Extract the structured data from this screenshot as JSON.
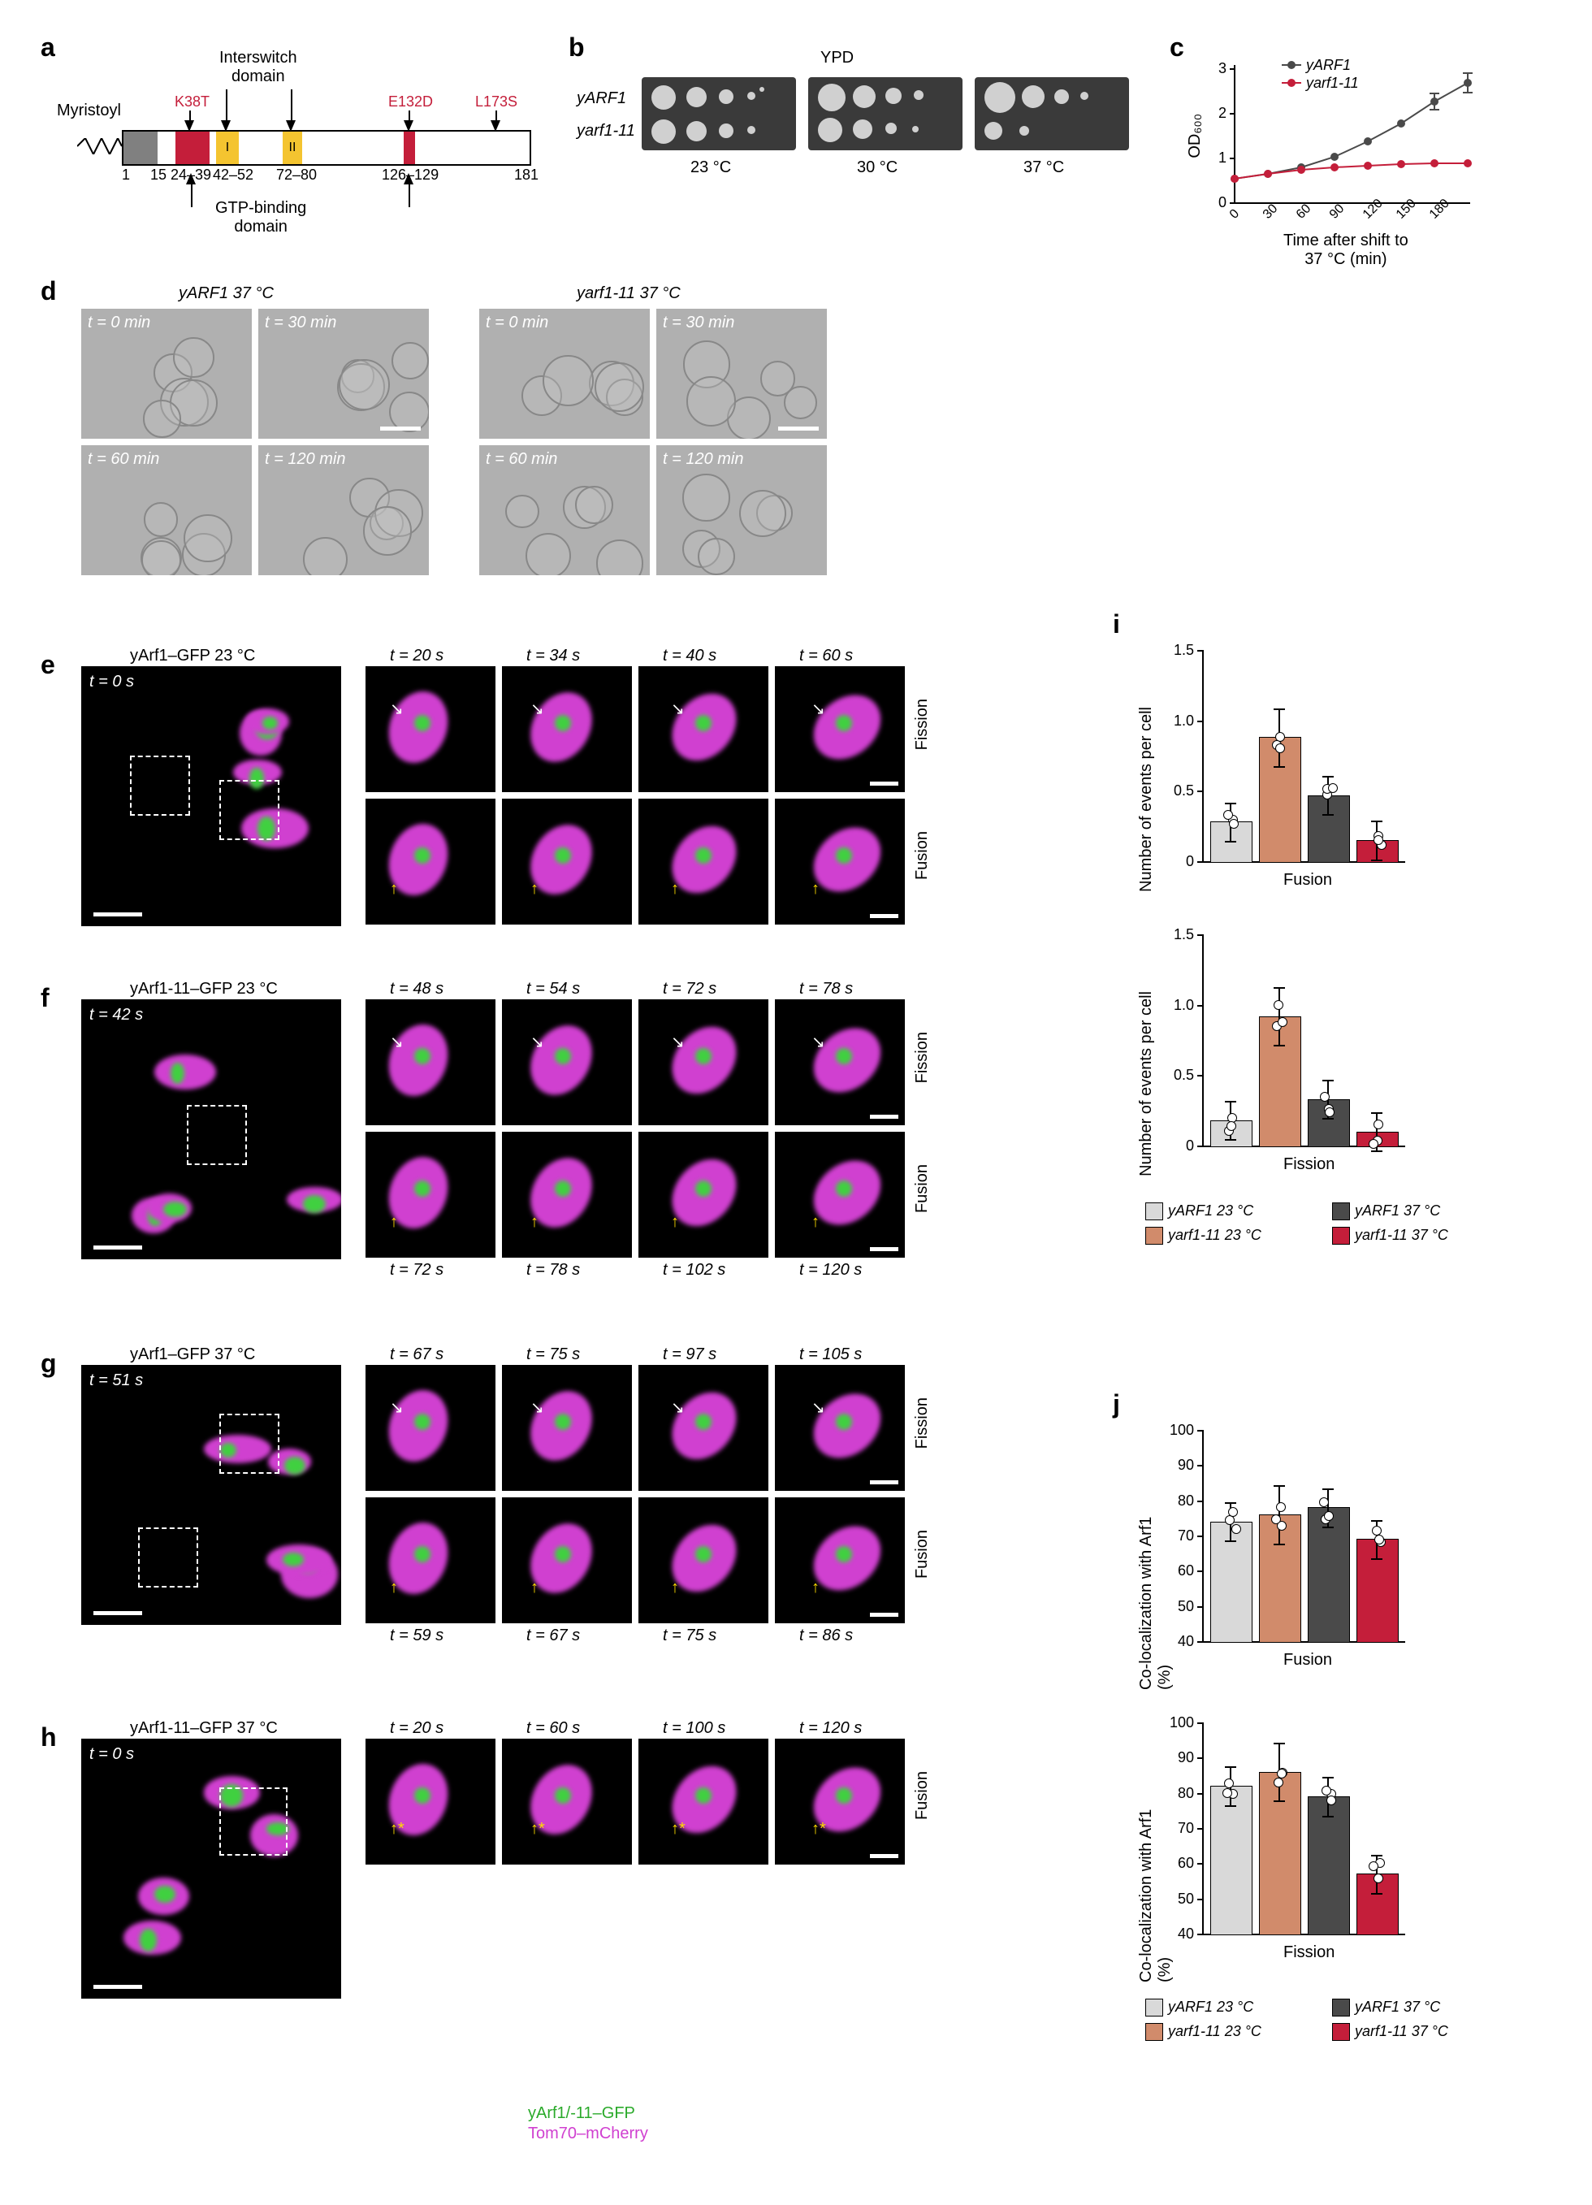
{
  "panel_labels": {
    "a": "a",
    "b": "b",
    "c": "c",
    "d": "d",
    "e": "e",
    "f": "f",
    "g": "g",
    "h": "h",
    "i": "i",
    "j": "j"
  },
  "a": {
    "myristoyl": "Myristoyl",
    "interswitch": "Interswitch\ndomain",
    "gtp": "GTP-binding\ndomain",
    "mutations": {
      "k38t": "K38T",
      "e132d": "E132D",
      "l173s": "L173S"
    },
    "domain_I": "I",
    "domain_II": "II",
    "ticks": {
      "1": "1",
      "15": "15",
      "24_39": "24–39",
      "42_52": "42–52",
      "72_80": "72–80",
      "126_129": "126–129",
      "181": "181"
    }
  },
  "b": {
    "title": "YPD",
    "rows": {
      "yarf1": "yARF1",
      "yarf1_11": "yarf1-11"
    },
    "temps": {
      "t23": "23 °C",
      "t30": "30 °C",
      "t37": "37 °C"
    }
  },
  "c": {
    "series": {
      "yarf1": "yARF1",
      "yarf1_11": "yarf1-11"
    },
    "colors": {
      "yarf1": "#4a4a4a",
      "yarf1_11": "#c41e3a"
    },
    "ylabel": "OD₆₀₀",
    "xlabel": "Time after shift to\n37 °C (min)",
    "xticks": [
      "0",
      "30",
      "60",
      "90",
      "120",
      "150",
      "180"
    ],
    "yticks": [
      "0",
      "1",
      "2",
      "3"
    ],
    "yarf1_vals": [
      0.55,
      0.65,
      0.8,
      1.05,
      1.4,
      1.8,
      2.3,
      2.7
    ],
    "yarf1_11_vals": [
      0.55,
      0.65,
      0.75,
      0.82,
      0.85,
      0.88,
      0.9,
      0.9
    ]
  },
  "d": {
    "left_title": "yARF1 37 °C",
    "right_title": "yarf1-11 37 °C",
    "times": {
      "t0": "t = 0 min",
      "t30": "t = 30 min",
      "t60": "t = 60 min",
      "t120": "t = 120 min"
    }
  },
  "e": {
    "title": "yArf1–GFP 23 °C",
    "t0": "t = 0 s",
    "times": {
      "t20": "t = 20 s",
      "t34": "t = 34 s",
      "t40": "t = 40 s",
      "t60": "t = 60 s"
    },
    "row_fission": "Fission",
    "row_fusion": "Fusion"
  },
  "f": {
    "title": "yArf1-11–GFP 23 °C",
    "t0": "t = 42 s",
    "times_top": {
      "t48": "t = 48 s",
      "t54": "t = 54 s",
      "t72": "t = 72 s",
      "t78": "t = 78 s"
    },
    "times_bot": {
      "t72": "t = 72 s",
      "t78": "t = 78 s",
      "t102": "t = 102 s",
      "t120": "t = 120 s"
    },
    "row_fission": "Fission",
    "row_fusion": "Fusion"
  },
  "g": {
    "title": "yArf1–GFP 37 °C",
    "t0": "t = 51 s",
    "times_top": {
      "t67": "t = 67 s",
      "t75": "t = 75 s",
      "t97": "t = 97 s",
      "t105": "t = 105 s"
    },
    "times_bot": {
      "t59": "t = 59 s",
      "t67": "t = 67 s",
      "t75": "t = 75 s",
      "t86": "t = 86 s"
    },
    "row_fission": "Fission",
    "row_fusion": "Fusion"
  },
  "h": {
    "title": "yArf1-11–GFP 37 °C",
    "t0": "t = 0 s",
    "times": {
      "t20": "t = 20 s",
      "t60": "t = 60 s",
      "t100": "t = 100 s",
      "t120": "t = 120 s"
    },
    "row_fusion": "Fusion",
    "key_green": "yArf1/-11–GFP",
    "key_magenta": "Tom70–mCherry"
  },
  "i": {
    "ylabel": "Number of events per cell",
    "cat_fusion": "Fusion",
    "cat_fission": "Fission",
    "yticks": [
      "0",
      "0.5",
      "1.0",
      "1.5"
    ],
    "fusion_vals": [
      0.28,
      0.88,
      0.47,
      0.15
    ],
    "fission_vals": [
      0.18,
      0.92,
      0.33,
      0.1
    ],
    "colors": [
      "#d9d9d9",
      "#d18b6b",
      "#4a4a4a",
      "#c41e3a"
    ]
  },
  "j": {
    "ylabel": "Co-localization with Arf1 (%)",
    "cat_fusion": "Fusion",
    "cat_fission": "Fission",
    "yticks": [
      "40",
      "50",
      "60",
      "70",
      "80",
      "90",
      "100"
    ],
    "fusion_vals": [
      74,
      76,
      78,
      69
    ],
    "fission_vals": [
      82,
      86,
      79,
      57
    ],
    "colors": [
      "#d9d9d9",
      "#d18b6b",
      "#4a4a4a",
      "#c41e3a"
    ]
  },
  "legend": {
    "l1": "yARF1 23 °C",
    "l2": "yARF1 37 °C",
    "l3": "yarf1-11 23 °C",
    "l4": "yarf1-11 37 °C"
  }
}
